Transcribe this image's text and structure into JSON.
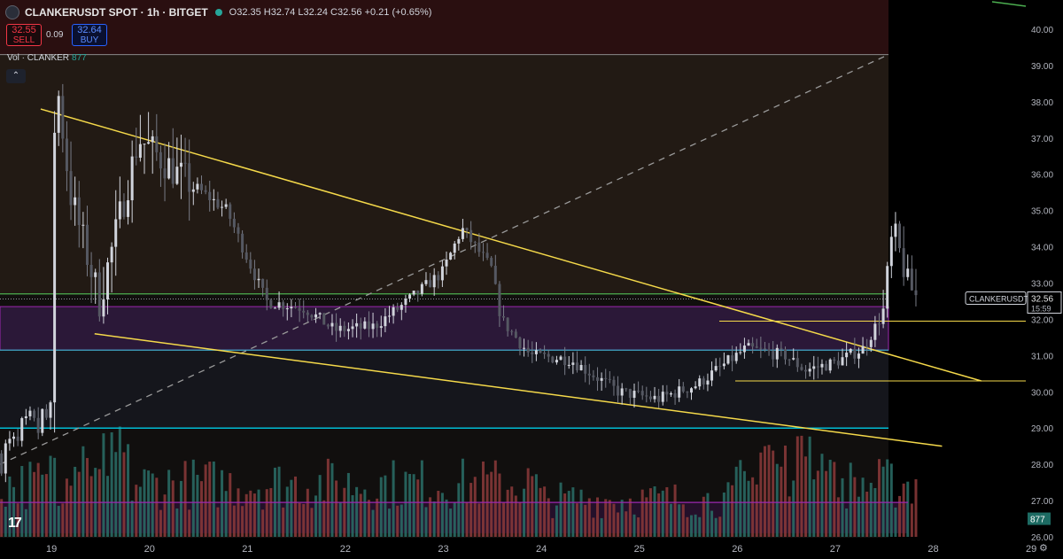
{
  "header": {
    "symbol": "CLANKERUSDT SPOT · 1h · BITGET",
    "ohlc": "O32.35 H32.74 L32.24 C32.56 +0.21 (+0.65%)"
  },
  "trade": {
    "sell_price": "32.55",
    "sell_label": "SELL",
    "spread": "0.09",
    "buy_price": "32.64",
    "buy_label": "BUY"
  },
  "volume_legend": {
    "label": "Vol · CLANKER",
    "value": "877"
  },
  "price_labels": {
    "symbol": "CLANKERUSDT",
    "price": "32.56",
    "countdown": "15:59",
    "volume_badge": "877"
  },
  "x_axis_labels": [
    "19",
    "20",
    "21",
    "22",
    "23",
    "24",
    "25",
    "26",
    "27",
    "28",
    "29"
  ],
  "y_axis_labels": [
    "40.00",
    "39.00",
    "38.00",
    "37.00",
    "36.00",
    "35.00",
    "34.00",
    "33.00",
    "32.00",
    "31.00",
    "30.00",
    "29.00",
    "28.00",
    "27.00",
    "26.00"
  ],
  "colors": {
    "up": "#d1d4dc",
    "down": "#787b86",
    "vol_up": "#26a69a",
    "vol_down": "#ef5350",
    "trendline": "#f5d94a",
    "green_line": "#4caf50",
    "cyan_line": "#00bcd4",
    "zone": "#9c27b0",
    "background": "#000000"
  },
  "chart_data": {
    "type": "candlestick",
    "title": "CLANKERUSDT SPOT · 1h · BITGET",
    "ylim": [
      26.0,
      40.3
    ],
    "x_axis_labels": [
      "19",
      "20",
      "21",
      "22",
      "23",
      "24",
      "25",
      "26",
      "27",
      "28",
      "29"
    ],
    "last_price": 32.56,
    "key_points": [
      {
        "x": 19.0,
        "y": 29.3
      },
      {
        "x": 19.05,
        "y": 38.9
      },
      {
        "x": 19.2,
        "y": 35.5
      },
      {
        "x": 19.5,
        "y": 32.5
      },
      {
        "x": 19.9,
        "y": 37.0
      },
      {
        "x": 20.3,
        "y": 36.0
      },
      {
        "x": 20.8,
        "y": 35.0
      },
      {
        "x": 21.2,
        "y": 32.5
      },
      {
        "x": 21.6,
        "y": 32.3
      },
      {
        "x": 21.9,
        "y": 31.7
      },
      {
        "x": 22.3,
        "y": 31.8
      },
      {
        "x": 22.6,
        "y": 32.4
      },
      {
        "x": 23.0,
        "y": 33.3
      },
      {
        "x": 23.2,
        "y": 34.5
      },
      {
        "x": 23.5,
        "y": 33.4
      },
      {
        "x": 23.6,
        "y": 32.0
      },
      {
        "x": 23.9,
        "y": 31.0
      },
      {
        "x": 24.3,
        "y": 30.9
      },
      {
        "x": 24.8,
        "y": 30.0
      },
      {
        "x": 25.2,
        "y": 29.8
      },
      {
        "x": 25.6,
        "y": 30.2
      },
      {
        "x": 25.9,
        "y": 30.8
      },
      {
        "x": 26.1,
        "y": 31.2
      },
      {
        "x": 26.5,
        "y": 31.0
      },
      {
        "x": 26.7,
        "y": 30.6
      },
      {
        "x": 27.0,
        "y": 30.8
      },
      {
        "x": 27.3,
        "y": 31.2
      },
      {
        "x": 27.5,
        "y": 32.2
      },
      {
        "x": 27.6,
        "y": 34.5
      },
      {
        "x": 27.75,
        "y": 33.0
      },
      {
        "x": 27.85,
        "y": 32.56
      }
    ],
    "levels": [
      {
        "name": "green",
        "y": 32.7
      },
      {
        "name": "zone_top",
        "y": 32.35
      },
      {
        "name": "zone_bottom",
        "y": 31.15
      },
      {
        "name": "cyan_mid",
        "y": 31.15
      },
      {
        "name": "cyan_low",
        "y": 29.0
      },
      {
        "name": "yellow_a",
        "y": 31.95
      },
      {
        "name": "yellow_b",
        "y": 30.3
      },
      {
        "name": "purple_vol",
        "y": 26.95
      },
      {
        "name": "top_line",
        "y": 39.3
      }
    ],
    "trendlines": [
      {
        "from": {
          "x": 18.9,
          "y": 37.8
        },
        "to": {
          "x": 28.5,
          "y": 30.3
        }
      },
      {
        "from": {
          "x": 19.45,
          "y": 31.6
        },
        "to": {
          "x": 28.1,
          "y": 28.5
        }
      }
    ]
  }
}
